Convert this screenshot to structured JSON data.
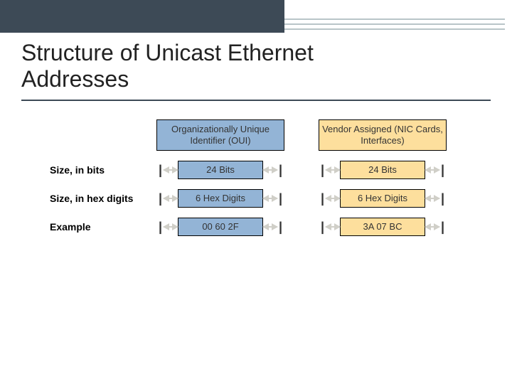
{
  "title_line1": "Structure of Unicast Ethernet",
  "title_line2": "Addresses",
  "colors": {
    "header_dark": "#3d4a56",
    "header_line": "#b9c5c8",
    "oui_fill": "#93b4d6",
    "vendor_fill": "#fddf9d",
    "box_border": "#000000",
    "arrow": "#d0cfc8"
  },
  "headers": {
    "oui": "Organizationally Unique Identifier (OUI)",
    "vendor": "Vendor Assigned (NIC Cards, Interfaces)"
  },
  "rows": [
    {
      "label": "Size, in bits",
      "oui": "24 Bits",
      "vendor": "24 Bits"
    },
    {
      "label": "Size, in hex digits",
      "oui": "6 Hex Digits",
      "vendor": "6 Hex Digits"
    },
    {
      "label": "Example",
      "oui": "00 60 2F",
      "vendor": "3A 07 BC"
    }
  ],
  "layout": {
    "label_col_width": 150,
    "wide_box_width": 180,
    "narrow_box_width": 120,
    "arrow_narrow_margin": 28,
    "title_fontsize": 32,
    "label_fontsize": 14,
    "box_fontsize": 13
  }
}
